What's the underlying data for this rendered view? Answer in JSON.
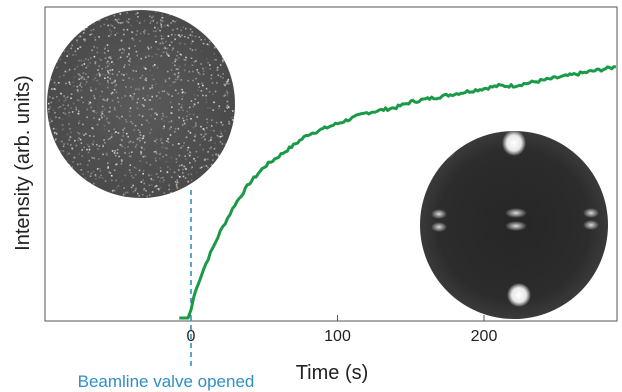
{
  "chart_data": {
    "type": "line",
    "title": "",
    "xlabel": "Time (s)",
    "ylabel": "Intensity (arb. units)",
    "xlim": [
      -100,
      290
    ],
    "ylim": [
      0,
      1
    ],
    "xticks": [
      0,
      100,
      200
    ],
    "grid": false,
    "series": [
      {
        "color": "#1a9a46",
        "x": [
          -8,
          -2,
          0,
          2,
          5,
          10,
          15,
          20,
          25,
          30,
          40,
          50,
          60,
          70,
          80,
          90,
          100,
          110,
          120,
          130,
          140,
          150,
          160,
          170,
          180,
          190,
          200,
          210,
          220,
          230,
          240,
          250,
          260,
          270,
          280,
          290
        ],
        "y": [
          0.0,
          0.0,
          0.03,
          0.08,
          0.13,
          0.2,
          0.26,
          0.32,
          0.37,
          0.42,
          0.5,
          0.56,
          0.6,
          0.64,
          0.68,
          0.7,
          0.72,
          0.74,
          0.76,
          0.77,
          0.78,
          0.8,
          0.81,
          0.82,
          0.83,
          0.84,
          0.85,
          0.86,
          0.86,
          0.87,
          0.88,
          0.89,
          0.9,
          0.91,
          0.92,
          0.93
        ]
      }
    ],
    "annotations": [
      {
        "text": "Beamline valve opened",
        "x": 0,
        "color": "#2f8fc8"
      }
    ],
    "insets": [
      {
        "description": "diffuse noisy diffraction pattern (before valve opened)",
        "anchor_x": 0
      },
      {
        "description": "sharp diffraction spots pattern (after)"
      }
    ]
  }
}
